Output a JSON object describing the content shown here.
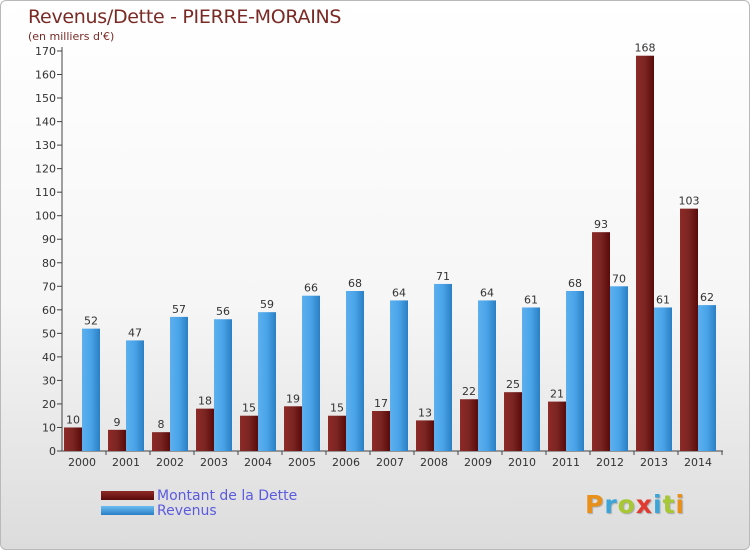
{
  "header": {
    "title": "Revenus/Dette - PIERRE-MORAINS",
    "subtitle": "(en milliers d'€)"
  },
  "legend": {
    "items": [
      {
        "label": "Montant de la Dette",
        "color": "#6e0b0b"
      },
      {
        "label": "Revenus",
        "color": "#3c98e0"
      }
    ]
  },
  "logo": {
    "letters": [
      {
        "ch": "P",
        "color": "#e8901a"
      },
      {
        "ch": "r",
        "color": "#3aa5d8"
      },
      {
        "ch": "o",
        "color": "#a7c832"
      },
      {
        "ch": "x",
        "color": "#e23a2e"
      },
      {
        "ch": "i",
        "color": "#3aa5d8"
      },
      {
        "ch": "t",
        "color": "#a7c832"
      },
      {
        "ch": "i",
        "color": "#e8901a"
      }
    ]
  },
  "chart_data": {
    "type": "bar",
    "title": "Revenus/Dette - PIERRE-MORAINS",
    "subtitle": "(en milliers d'€)",
    "categories": [
      "2000",
      "2001",
      "2002",
      "2003",
      "2004",
      "2005",
      "2006",
      "2007",
      "2008",
      "2009",
      "2010",
      "2011",
      "2012",
      "2013",
      "2014"
    ],
    "series": [
      {
        "name": "Montant de la Dette",
        "color": "#6e0b0b",
        "values": [
          10,
          9,
          8,
          18,
          15,
          19,
          15,
          17,
          13,
          22,
          25,
          21,
          93,
          168,
          103
        ]
      },
      {
        "name": "Revenus",
        "color": "#3c98e0",
        "values": [
          52,
          47,
          57,
          56,
          59,
          66,
          68,
          64,
          71,
          64,
          61,
          68,
          70,
          61,
          62
        ]
      }
    ],
    "ylim": [
      0,
      170
    ],
    "yticks": [
      0,
      10,
      20,
      30,
      40,
      50,
      60,
      70,
      80,
      90,
      100,
      110,
      120,
      130,
      140,
      150,
      160,
      170
    ],
    "grid": false,
    "legend_position": "bottom-left"
  }
}
